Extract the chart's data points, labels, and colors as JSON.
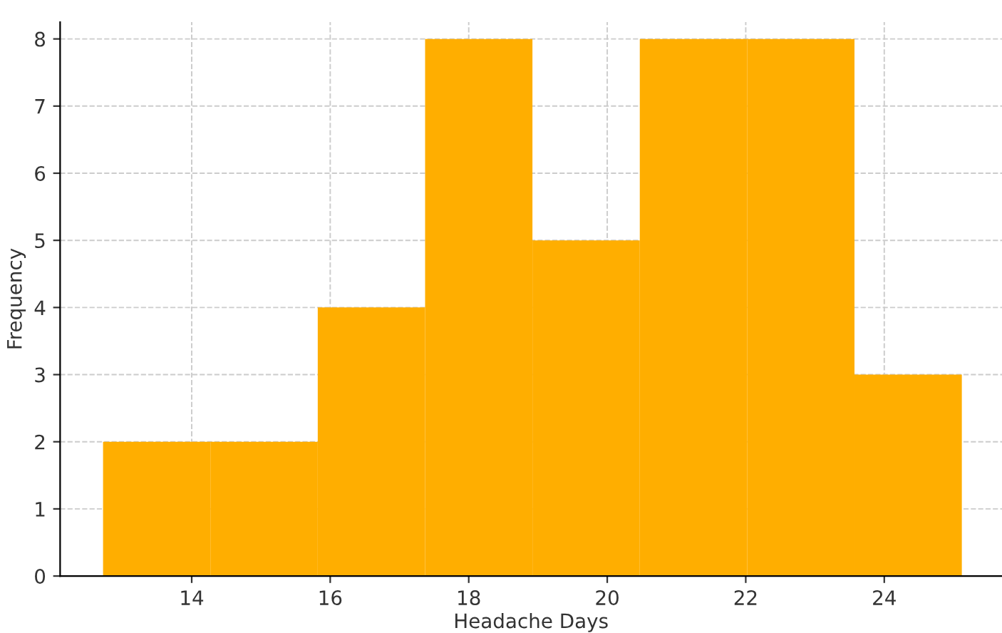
{
  "chart_data": {
    "type": "histogram",
    "xlabel": "Headache Days",
    "ylabel": "Frequency",
    "bins": [
      12.72,
      14.27,
      15.82,
      17.37,
      18.92,
      20.47,
      22.02,
      23.57,
      25.12
    ],
    "values": [
      2,
      2,
      4,
      8,
      5,
      8,
      8,
      3
    ],
    "color": "#ffae00",
    "xlim": [
      12.1,
      25.7
    ],
    "xticks": [
      14,
      16,
      18,
      20,
      22,
      24
    ],
    "ylim": [
      0,
      8.25
    ],
    "yticks": [
      0,
      1,
      2,
      3,
      4,
      5,
      6,
      7,
      8
    ],
    "grid": true
  }
}
